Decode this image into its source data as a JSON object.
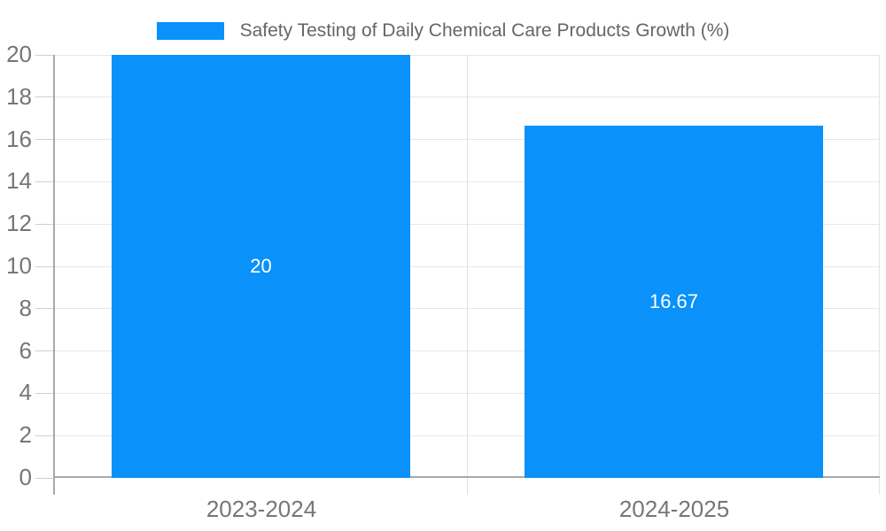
{
  "chart_data": {
    "type": "bar",
    "title": "Safety Testing of Daily Chemical Care Products Growth (%)",
    "legend": {
      "label": "Safety Testing of Daily Chemical Care Products Growth (%)",
      "position": "top-center"
    },
    "categories": [
      "2023-2024",
      "2024-2025"
    ],
    "values": [
      20,
      16.67
    ],
    "data_labels": [
      "20",
      "16.67"
    ],
    "xlabel": "",
    "ylabel": "",
    "ylim": [
      0,
      20
    ],
    "yticks": [
      0,
      2,
      4,
      6,
      8,
      10,
      12,
      14,
      16,
      18,
      20
    ],
    "grid": true,
    "colors": {
      "bar": "#0A91FA",
      "axis_line": "#A9A9A9",
      "tick_line": "#CFCFCF",
      "grid_line": "#E6E6E6",
      "vertical_grid_line": "#E2E2E2",
      "axis_label": "#767676",
      "legend_text": "#666666",
      "data_label": "#FFFFFF",
      "background": "#FFFFFF"
    }
  }
}
